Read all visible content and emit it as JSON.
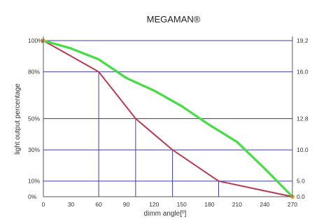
{
  "chart_data": {
    "type": "line",
    "title": "MEGAMAN®",
    "xlabel": "dimm angle[º]",
    "ylabel": "light output percentage",
    "xlim": [
      0,
      270
    ],
    "x_ticks": [
      "0",
      "30",
      "60",
      "90",
      "120",
      "150",
      "180",
      "210",
      "240",
      "270"
    ],
    "y_left_ticks": [
      "0%",
      "10%",
      "30%",
      "50%",
      "80%",
      "100%"
    ],
    "y_left_tick_values": [
      0,
      10,
      30,
      50,
      80,
      100
    ],
    "y_right_ticks": [
      "0.0",
      "5.0",
      "10.0",
      "12.8",
      "16.0",
      "19.2"
    ],
    "gridlines_y": [
      10,
      30,
      50,
      80,
      100
    ],
    "drop_lines_x": [
      60,
      100,
      140,
      190
    ],
    "grid": true,
    "series": [
      {
        "color": "#b83a50",
        "x": [
          0,
          30,
          60,
          80,
          100,
          120,
          140,
          165,
          190,
          230,
          270
        ],
        "y": [
          100,
          90,
          80,
          65,
          50,
          40,
          30,
          20,
          10,
          5,
          0
        ]
      },
      {
        "color": "#44dd44",
        "x": [
          0,
          30,
          60,
          90,
          120,
          150,
          180,
          210,
          240,
          270
        ],
        "y": [
          100,
          95,
          88,
          76,
          68,
          58,
          46,
          35,
          18,
          0
        ]
      }
    ]
  }
}
